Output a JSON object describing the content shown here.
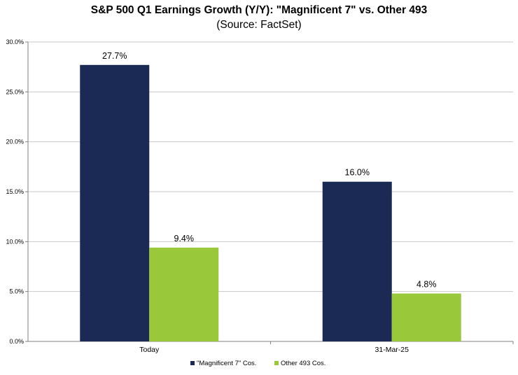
{
  "chart_data": {
    "type": "bar",
    "title": "S&P 500 Q1 Earnings Growth (Y/Y): \"Magnificent 7\" vs. Other 493",
    "subtitle": "(Source: FactSet)",
    "categories": [
      "Today",
      "31-Mar-25"
    ],
    "series": [
      {
        "name": "\"Magnificent 7\" Cos.",
        "values": [
          27.7,
          16.0
        ],
        "labels": [
          "27.7%",
          "16.0%"
        ],
        "color": "#1b2a54"
      },
      {
        "name": "Other 493 Cos.",
        "values": [
          9.4,
          4.8
        ],
        "labels": [
          "9.4%",
          "4.8%"
        ],
        "color": "#99c93b"
      }
    ],
    "ylim": [
      0,
      30
    ],
    "yticks": [
      0,
      5,
      10,
      15,
      20,
      25,
      30
    ],
    "ytick_labels": [
      "0.0%",
      "5.0%",
      "10.0%",
      "15.0%",
      "20.0%",
      "25.0%",
      "30.0%"
    ],
    "grid": true,
    "legend_position": "bottom-center",
    "xlabel": "",
    "ylabel": ""
  }
}
